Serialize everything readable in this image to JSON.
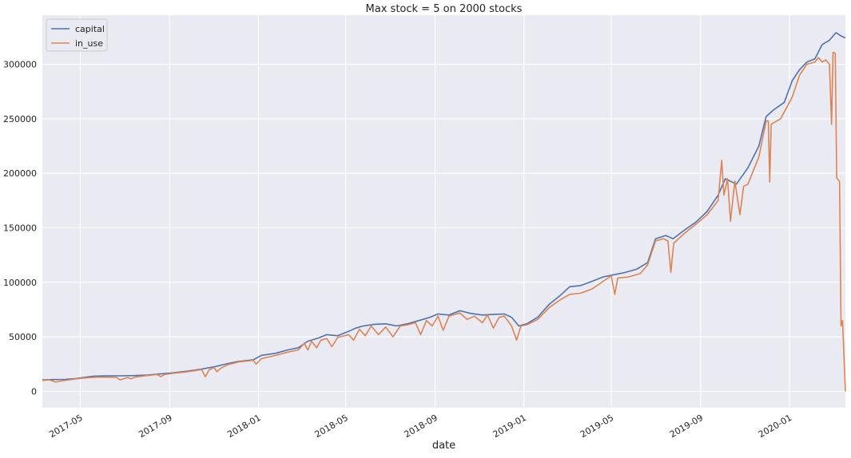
{
  "chart_data": {
    "type": "line",
    "title": "Max stock = 5 on 2000 stocks",
    "xlabel": "date",
    "ylabel": "",
    "x_axis": {
      "kind": "date",
      "range": [
        "2017-03-10",
        "2020-03-18"
      ],
      "ticks": [
        {
          "value": "2017-05-01",
          "label": "2017-05"
        },
        {
          "value": "2017-09-01",
          "label": "2017-09"
        },
        {
          "value": "2018-01-01",
          "label": "2018-01"
        },
        {
          "value": "2018-05-01",
          "label": "2018-05"
        },
        {
          "value": "2018-09-01",
          "label": "2018-09"
        },
        {
          "value": "2019-01-01",
          "label": "2019-01"
        },
        {
          "value": "2019-05-01",
          "label": "2019-05"
        },
        {
          "value": "2019-09-01",
          "label": "2019-09"
        },
        {
          "value": "2020-01-01",
          "label": "2020-01"
        }
      ]
    },
    "y_axis": {
      "range": [
        -15000,
        345000
      ],
      "ticks": [
        0,
        50000,
        100000,
        150000,
        200000,
        250000,
        300000
      ]
    },
    "grid": true,
    "legend": {
      "position": "top-left"
    },
    "series": [
      {
        "name": "capital",
        "color": "#4c72b0",
        "points": [
          [
            "2017-03-10",
            10500
          ],
          [
            "2017-03-25",
            10800
          ],
          [
            "2017-04-10",
            11000
          ],
          [
            "2017-04-25",
            11800
          ],
          [
            "2017-05-10",
            13200
          ],
          [
            "2017-05-20",
            14000
          ],
          [
            "2017-06-05",
            14200
          ],
          [
            "2017-06-25",
            14300
          ],
          [
            "2017-07-15",
            14500
          ],
          [
            "2017-08-01",
            15000
          ],
          [
            "2017-08-20",
            16000
          ],
          [
            "2017-09-05",
            17000
          ],
          [
            "2017-09-25",
            18500
          ],
          [
            "2017-10-15",
            20500
          ],
          [
            "2017-11-01",
            22500
          ],
          [
            "2017-11-20",
            25500
          ],
          [
            "2017-12-05",
            27500
          ],
          [
            "2017-12-25",
            29000
          ],
          [
            "2018-01-05",
            33000
          ],
          [
            "2018-01-25",
            35000
          ],
          [
            "2018-02-10",
            38000
          ],
          [
            "2018-02-25",
            40000
          ],
          [
            "2018-03-10",
            46000
          ],
          [
            "2018-03-25",
            49000
          ],
          [
            "2018-04-05",
            52000
          ],
          [
            "2018-04-20",
            51000
          ],
          [
            "2018-05-05",
            55000
          ],
          [
            "2018-05-15",
            58000
          ],
          [
            "2018-05-25",
            60000
          ],
          [
            "2018-06-10",
            61500
          ],
          [
            "2018-06-25",
            62000
          ],
          [
            "2018-07-10",
            60000
          ],
          [
            "2018-07-25",
            62000
          ],
          [
            "2018-08-10",
            65000
          ],
          [
            "2018-08-25",
            68000
          ],
          [
            "2018-09-05",
            71000
          ],
          [
            "2018-09-20",
            70000
          ],
          [
            "2018-10-05",
            74000
          ],
          [
            "2018-10-20",
            71500
          ],
          [
            "2018-11-05",
            70000
          ],
          [
            "2018-11-20",
            70500
          ],
          [
            "2018-12-05",
            71000
          ],
          [
            "2018-12-15",
            68000
          ],
          [
            "2018-12-25",
            60000
          ],
          [
            "2019-01-05",
            62000
          ],
          [
            "2019-01-20",
            68000
          ],
          [
            "2019-02-05",
            80000
          ],
          [
            "2019-02-20",
            88000
          ],
          [
            "2019-03-05",
            96000
          ],
          [
            "2019-03-20",
            97000
          ],
          [
            "2019-04-05",
            101000
          ],
          [
            "2019-04-20",
            105000
          ],
          [
            "2019-05-05",
            107000
          ],
          [
            "2019-05-20",
            109000
          ],
          [
            "2019-06-05",
            112000
          ],
          [
            "2019-06-20",
            118000
          ],
          [
            "2019-07-01",
            140000
          ],
          [
            "2019-07-15",
            143000
          ],
          [
            "2019-07-25",
            140000
          ],
          [
            "2019-08-10",
            148000
          ],
          [
            "2019-08-25",
            155000
          ],
          [
            "2019-09-10",
            165000
          ],
          [
            "2019-09-25",
            180000
          ],
          [
            "2019-10-05",
            195000
          ],
          [
            "2019-10-20",
            190000
          ],
          [
            "2019-11-05",
            205000
          ],
          [
            "2019-11-20",
            225000
          ],
          [
            "2019-11-30",
            252000
          ],
          [
            "2019-12-10",
            258000
          ],
          [
            "2019-12-25",
            265000
          ],
          [
            "2020-01-05",
            285000
          ],
          [
            "2020-01-15",
            295000
          ],
          [
            "2020-01-25",
            302000
          ],
          [
            "2020-02-05",
            305000
          ],
          [
            "2020-02-15",
            318000
          ],
          [
            "2020-02-25",
            322000
          ],
          [
            "2020-03-05",
            329000
          ],
          [
            "2020-03-12",
            326000
          ],
          [
            "2020-03-18",
            324000
          ]
        ]
      },
      {
        "name": "in_use",
        "color": "#dd8452",
        "points": [
          [
            "2017-03-10",
            10000
          ],
          [
            "2017-03-20",
            10500
          ],
          [
            "2017-03-28",
            8500
          ],
          [
            "2017-04-05",
            9500
          ],
          [
            "2017-04-25",
            11500
          ],
          [
            "2017-05-10",
            12500
          ],
          [
            "2017-05-25",
            13000
          ],
          [
            "2017-06-05",
            13000
          ],
          [
            "2017-06-20",
            12800
          ],
          [
            "2017-06-25",
            10500
          ],
          [
            "2017-07-05",
            12700
          ],
          [
            "2017-07-10",
            11500
          ],
          [
            "2017-07-15",
            13000
          ],
          [
            "2017-08-01",
            14500
          ],
          [
            "2017-08-15",
            15500
          ],
          [
            "2017-08-20",
            13500
          ],
          [
            "2017-08-25",
            15500
          ],
          [
            "2017-09-05",
            16500
          ],
          [
            "2017-09-25",
            18000
          ],
          [
            "2017-10-15",
            20000
          ],
          [
            "2017-10-20",
            13500
          ],
          [
            "2017-10-25",
            19500
          ],
          [
            "2017-11-01",
            22000
          ],
          [
            "2017-11-05",
            18000
          ],
          [
            "2017-11-10",
            21000
          ],
          [
            "2017-11-20",
            24500
          ],
          [
            "2017-12-05",
            27000
          ],
          [
            "2017-12-25",
            28500
          ],
          [
            "2017-12-29",
            25000
          ],
          [
            "2018-01-05",
            30000
          ],
          [
            "2018-01-25",
            33000
          ],
          [
            "2018-02-10",
            36000
          ],
          [
            "2018-02-25",
            38000
          ],
          [
            "2018-03-05",
            44000
          ],
          [
            "2018-03-10",
            38000
          ],
          [
            "2018-03-15",
            46000
          ],
          [
            "2018-03-22",
            40000
          ],
          [
            "2018-03-28",
            47000
          ],
          [
            "2018-04-05",
            48500
          ],
          [
            "2018-04-12",
            41000
          ],
          [
            "2018-04-20",
            49500
          ],
          [
            "2018-05-05",
            52000
          ],
          [
            "2018-05-12",
            47000
          ],
          [
            "2018-05-20",
            57000
          ],
          [
            "2018-05-28",
            51000
          ],
          [
            "2018-06-05",
            60000
          ],
          [
            "2018-06-15",
            52000
          ],
          [
            "2018-06-25",
            59000
          ],
          [
            "2018-07-05",
            50000
          ],
          [
            "2018-07-15",
            60000
          ],
          [
            "2018-07-25",
            61000
          ],
          [
            "2018-08-05",
            63000
          ],
          [
            "2018-08-12",
            52000
          ],
          [
            "2018-08-20",
            65000
          ],
          [
            "2018-08-28",
            60000
          ],
          [
            "2018-09-05",
            69000
          ],
          [
            "2018-09-12",
            56000
          ],
          [
            "2018-09-20",
            69000
          ],
          [
            "2018-10-05",
            72000
          ],
          [
            "2018-10-15",
            66000
          ],
          [
            "2018-10-25",
            69000
          ],
          [
            "2018-11-05",
            63000
          ],
          [
            "2018-11-12",
            70000
          ],
          [
            "2018-11-20",
            58000
          ],
          [
            "2018-11-28",
            68000
          ],
          [
            "2018-12-05",
            69000
          ],
          [
            "2018-12-15",
            60000
          ],
          [
            "2018-12-22",
            47000
          ],
          [
            "2018-12-28",
            60000
          ],
          [
            "2019-01-05",
            61000
          ],
          [
            "2019-01-20",
            66000
          ],
          [
            "2019-02-05",
            77000
          ],
          [
            "2019-02-20",
            84000
          ],
          [
            "2019-03-05",
            89000
          ],
          [
            "2019-03-20",
            90000
          ],
          [
            "2019-04-05",
            94000
          ],
          [
            "2019-04-20",
            101000
          ],
          [
            "2019-05-01",
            106000
          ],
          [
            "2019-05-06",
            89000
          ],
          [
            "2019-05-10",
            104000
          ],
          [
            "2019-05-25",
            105000
          ],
          [
            "2019-06-10",
            108000
          ],
          [
            "2019-06-20",
            116000
          ],
          [
            "2019-07-01",
            138000
          ],
          [
            "2019-07-12",
            140000
          ],
          [
            "2019-07-18",
            138000
          ],
          [
            "2019-07-22",
            109000
          ],
          [
            "2019-07-26",
            136000
          ],
          [
            "2019-08-10",
            145000
          ],
          [
            "2019-08-25",
            153000
          ],
          [
            "2019-09-10",
            162000
          ],
          [
            "2019-09-25",
            175000
          ],
          [
            "2019-09-30",
            212000
          ],
          [
            "2019-10-03",
            180000
          ],
          [
            "2019-10-08",
            195000
          ],
          [
            "2019-10-12",
            156000
          ],
          [
            "2019-10-18",
            193000
          ],
          [
            "2019-10-25",
            162000
          ],
          [
            "2019-10-30",
            188000
          ],
          [
            "2019-11-05",
            190000
          ],
          [
            "2019-11-20",
            215000
          ],
          [
            "2019-11-30",
            248000
          ],
          [
            "2019-12-03",
            248000
          ],
          [
            "2019-12-05",
            192000
          ],
          [
            "2019-12-07",
            245000
          ],
          [
            "2019-12-20",
            250000
          ],
          [
            "2020-01-05",
            270000
          ],
          [
            "2020-01-15",
            290000
          ],
          [
            "2020-01-25",
            300000
          ],
          [
            "2020-02-05",
            302000
          ],
          [
            "2020-02-10",
            306000
          ],
          [
            "2020-02-15",
            302000
          ],
          [
            "2020-02-20",
            304000
          ],
          [
            "2020-02-25",
            300000
          ],
          [
            "2020-02-28",
            245000
          ],
          [
            "2020-03-01",
            311000
          ],
          [
            "2020-03-04",
            310000
          ],
          [
            "2020-03-06",
            196000
          ],
          [
            "2020-03-10",
            192000
          ],
          [
            "2020-03-12",
            60000
          ],
          [
            "2020-03-14",
            65000
          ],
          [
            "2020-03-18",
            0
          ]
        ]
      }
    ]
  }
}
